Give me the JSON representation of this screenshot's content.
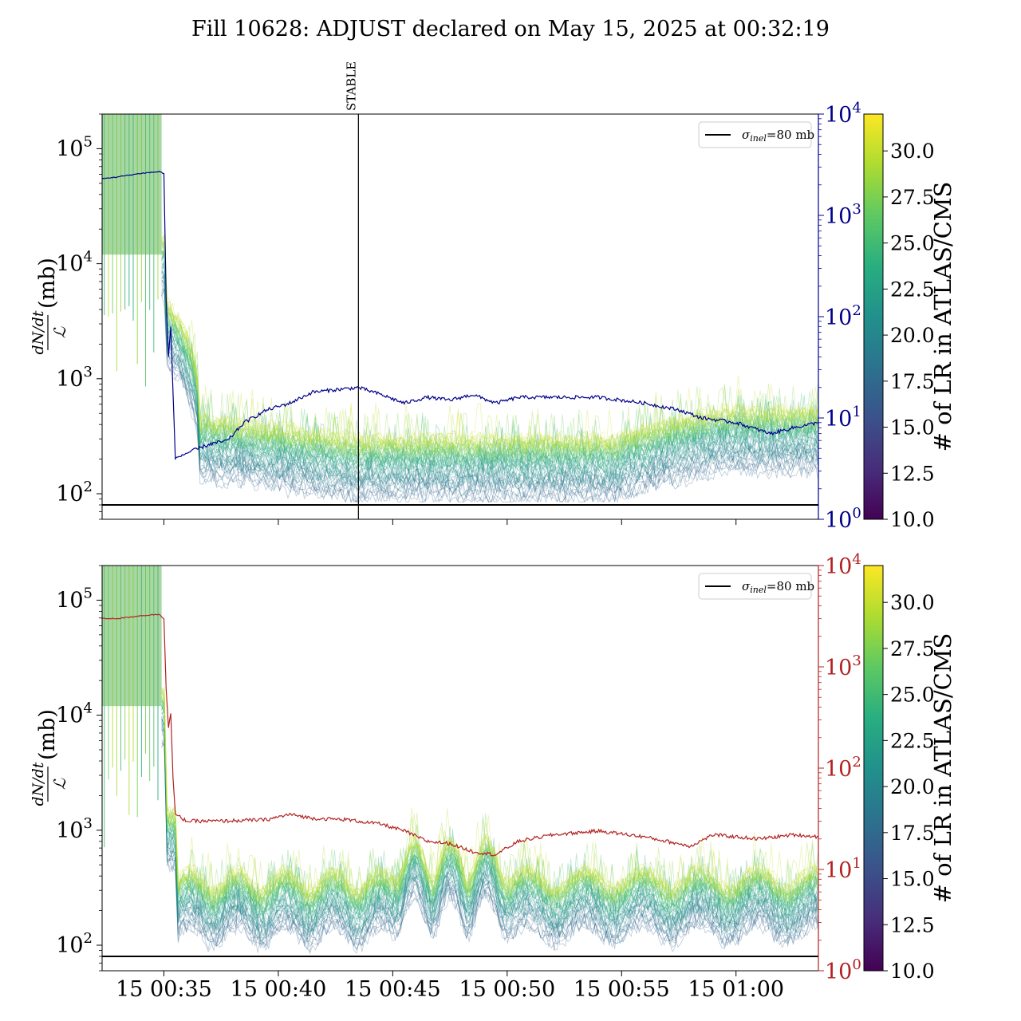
{
  "title": "Fill 10628: ADJUST declared on May 15, 2025 at 00:32:19",
  "time_ticks": [
    "15 00:35",
    "15 00:40",
    "15 00:45",
    "15 00:50",
    "15 00:55",
    "15 01:00"
  ],
  "chart_data": [
    {
      "type": "line",
      "ylabel_frac": "dN/dt / ℒ",
      "ylabel_unit": "(mb)",
      "y_scale": "log",
      "ylim": [
        60,
        200000
      ],
      "y_ticks": [
        {
          "value": 100,
          "base": "10",
          "exp": "2"
        },
        {
          "value": 1000,
          "base": "10",
          "exp": "3"
        },
        {
          "value": 10000,
          "base": "10",
          "exp": "4"
        },
        {
          "value": 100000,
          "base": "10",
          "exp": "5"
        }
      ],
      "y2_scale": "log",
      "y2lim": [
        1,
        10000
      ],
      "y2_color": "#00008b",
      "y2_ticks": [
        {
          "value": 1,
          "base": "10",
          "exp": "0"
        },
        {
          "value": 10,
          "base": "10",
          "exp": "1"
        },
        {
          "value": 100,
          "base": "10",
          "exp": "2"
        },
        {
          "value": 1000,
          "base": "10",
          "exp": "3"
        },
        {
          "value": 10000,
          "base": "10",
          "exp": "4"
        }
      ],
      "xlim_minutes": [
        32.3,
        63.6
      ],
      "x_tick_minutes": [
        35,
        40,
        45,
        50,
        55,
        60
      ],
      "show_x_tick_labels": false,
      "reference_line": {
        "value": 80,
        "label": "σinel=80 mb",
        "label_sym": "σ",
        "label_sub": "inel",
        "label_rest": "=80 mb",
        "color": "#000000"
      },
      "legend_position": "top-right",
      "annotation": {
        "text": "STABLE",
        "x_minute": 43.5
      },
      "secondary_series": {
        "color": "#00008b",
        "points": [
          [
            32.3,
            2300
          ],
          [
            33,
            2400
          ],
          [
            34,
            2600
          ],
          [
            34.8,
            2700
          ],
          [
            35.0,
            2600
          ],
          [
            35.1,
            150
          ],
          [
            35.2,
            40
          ],
          [
            35.3,
            80
          ],
          [
            35.5,
            4
          ],
          [
            36,
            4.5
          ],
          [
            37,
            5.5
          ],
          [
            37.8,
            6
          ],
          [
            38.5,
            9
          ],
          [
            39.5,
            12
          ],
          [
            40.5,
            14
          ],
          [
            41.5,
            18
          ],
          [
            42.5,
            19
          ],
          [
            43.5,
            20
          ],
          [
            44.5,
            17
          ],
          [
            45.5,
            14
          ],
          [
            46.5,
            16
          ],
          [
            47.5,
            15
          ],
          [
            48.5,
            17
          ],
          [
            49.5,
            14
          ],
          [
            50.5,
            16
          ],
          [
            52,
            16
          ],
          [
            54,
            16
          ],
          [
            56,
            14
          ],
          [
            57.5,
            12
          ],
          [
            58.5,
            10
          ],
          [
            60,
            9
          ],
          [
            61.5,
            7
          ],
          [
            62.5,
            8
          ],
          [
            63.6,
            9
          ]
        ]
      },
      "colorbar": {
        "label": "# of LR in ATLAS/CMS",
        "range": [
          10.0,
          32.0
        ],
        "ticks": [
          "10.0",
          "12.5",
          "15.0",
          "17.5",
          "20.0",
          "22.5",
          "25.0",
          "27.5",
          "30.0"
        ]
      }
    },
    {
      "type": "line",
      "ylabel_frac": "dN/dt / ℒ",
      "ylabel_unit": "(mb)",
      "y_scale": "log",
      "ylim": [
        60,
        200000
      ],
      "y_ticks": [
        {
          "value": 100,
          "base": "10",
          "exp": "2"
        },
        {
          "value": 1000,
          "base": "10",
          "exp": "3"
        },
        {
          "value": 10000,
          "base": "10",
          "exp": "4"
        },
        {
          "value": 100000,
          "base": "10",
          "exp": "5"
        }
      ],
      "y2_scale": "log",
      "y2lim": [
        1,
        10000
      ],
      "y2_color": "#b22222",
      "y2_ticks": [
        {
          "value": 1,
          "base": "10",
          "exp": "0"
        },
        {
          "value": 10,
          "base": "10",
          "exp": "1"
        },
        {
          "value": 100,
          "base": "10",
          "exp": "2"
        },
        {
          "value": 1000,
          "base": "10",
          "exp": "3"
        },
        {
          "value": 10000,
          "base": "10",
          "exp": "4"
        }
      ],
      "xlim_minutes": [
        32.3,
        63.6
      ],
      "x_tick_minutes": [
        35,
        40,
        45,
        50,
        55,
        60
      ],
      "show_x_tick_labels": true,
      "reference_line": {
        "value": 80,
        "label": "σinel=80 mb",
        "label_sym": "σ",
        "label_sub": "inel",
        "label_rest": "=80 mb",
        "color": "#000000"
      },
      "legend_position": "top-right",
      "secondary_series": {
        "color": "#b22222",
        "points": [
          [
            32.3,
            3000
          ],
          [
            33,
            3000
          ],
          [
            34,
            3200
          ],
          [
            34.8,
            3300
          ],
          [
            35.0,
            3000
          ],
          [
            35.1,
            600
          ],
          [
            35.2,
            250
          ],
          [
            35.3,
            350
          ],
          [
            35.4,
            80
          ],
          [
            35.5,
            35
          ],
          [
            36,
            30
          ],
          [
            37.5,
            30
          ],
          [
            39.5,
            31
          ],
          [
            40.5,
            35
          ],
          [
            41.5,
            32
          ],
          [
            43,
            31
          ],
          [
            44.5,
            28
          ],
          [
            45.5,
            24
          ],
          [
            46.5,
            19
          ],
          [
            47.5,
            18
          ],
          [
            48.5,
            15
          ],
          [
            49.5,
            14
          ],
          [
            50.5,
            19
          ],
          [
            52,
            22
          ],
          [
            54,
            24
          ],
          [
            56,
            21
          ],
          [
            58,
            17
          ],
          [
            59,
            22
          ],
          [
            61,
            20
          ],
          [
            62.5,
            22
          ],
          [
            63.6,
            21
          ]
        ]
      },
      "colorbar": {
        "label": "# of LR in ATLAS/CMS",
        "range": [
          10.0,
          32.0
        ],
        "ticks": [
          "10.0",
          "12.5",
          "15.0",
          "17.5",
          "20.0",
          "22.5",
          "25.0",
          "27.5",
          "30.0"
        ]
      }
    }
  ]
}
